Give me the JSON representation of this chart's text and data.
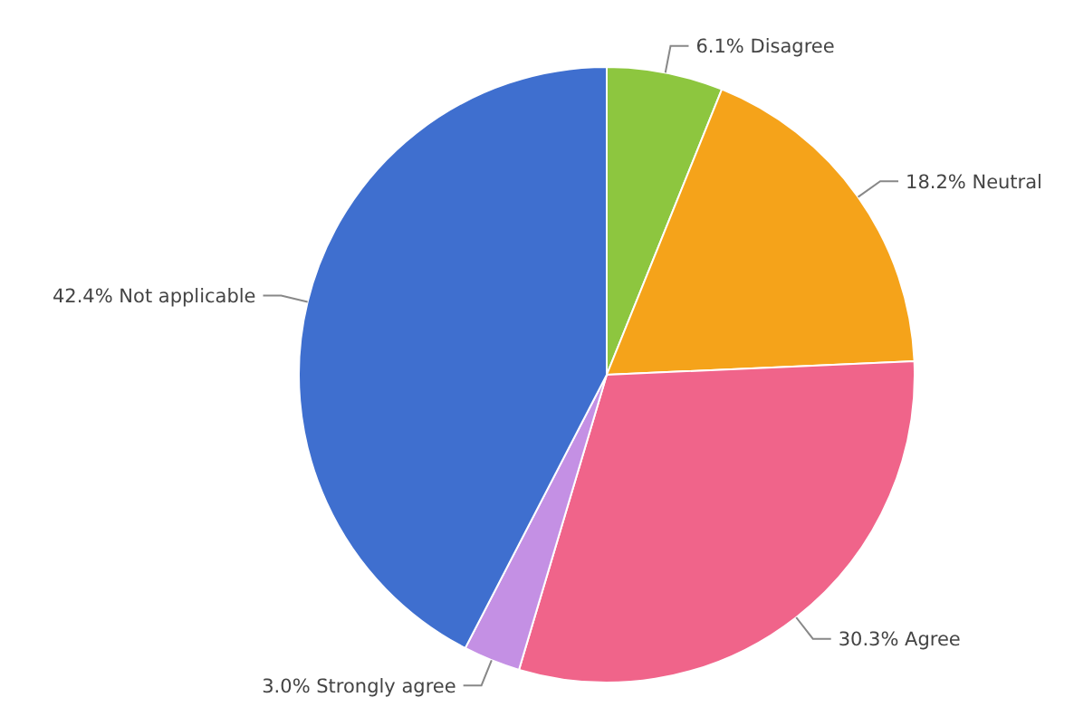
{
  "chart_data": {
    "type": "pie",
    "categories": [
      "Disagree",
      "Neutral",
      "Agree",
      "Strongly agree",
      "Not applicable"
    ],
    "values": [
      6.1,
      18.2,
      30.3,
      3.0,
      42.4
    ],
    "value_labels": [
      "6.1%",
      "18.2%",
      "30.3%",
      "3.0%",
      "42.4%"
    ],
    "colors": [
      "#8dc63f",
      "#f5a31a",
      "#f0648a",
      "#c490e4",
      "#3f6fcf"
    ],
    "legend": false
  }
}
